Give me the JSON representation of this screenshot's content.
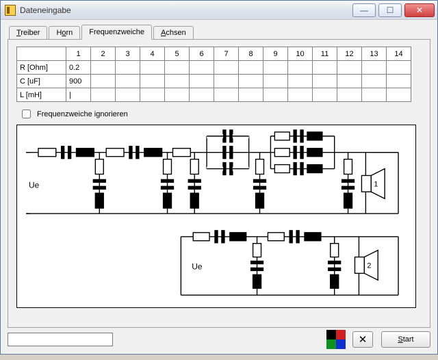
{
  "window": {
    "title": "Dateneingabe"
  },
  "tabs": {
    "treiber": "Treiber",
    "horn": "Horn",
    "frequenzweiche": "Frequenzweiche",
    "achsen": "Achsen",
    "active": "frequenzweiche"
  },
  "table": {
    "num_cols": 14,
    "col_headers": [
      "1",
      "2",
      "3",
      "4",
      "5",
      "6",
      "7",
      "8",
      "9",
      "10",
      "11",
      "12",
      "13",
      "14"
    ],
    "rows": [
      {
        "label": "R [Ohm]",
        "values": [
          "0.2",
          "",
          "",
          "",
          "",
          "",
          "",
          "",
          "",
          "",
          "",
          "",
          "",
          ""
        ]
      },
      {
        "label": "C [uF]",
        "values": [
          "900",
          "",
          "",
          "",
          "",
          "",
          "",
          "",
          "",
          "",
          "",
          "",
          "",
          ""
        ]
      },
      {
        "label": "L [mH]",
        "values": [
          "|",
          "",
          "",
          "",
          "",
          "",
          "",
          "",
          "",
          "",
          "",
          "",
          "",
          ""
        ]
      }
    ]
  },
  "checkbox": {
    "label": "Frequenzweiche ignorieren",
    "checked": false
  },
  "circuit": {
    "ue_label": "Ue",
    "speaker1_label": "1",
    "speaker2_label": "2",
    "colors": {
      "wire": "#000000",
      "fill_solid": "#000000",
      "fill_open": "#ffffff",
      "background": "#ffffff"
    },
    "stroke_width": 1.4
  },
  "palette": {
    "colors": [
      "#000000",
      "#d02020",
      "#109020",
      "#1030d0"
    ]
  },
  "buttons": {
    "cancel_symbol": "✕",
    "start": "Start"
  },
  "status_input": ""
}
